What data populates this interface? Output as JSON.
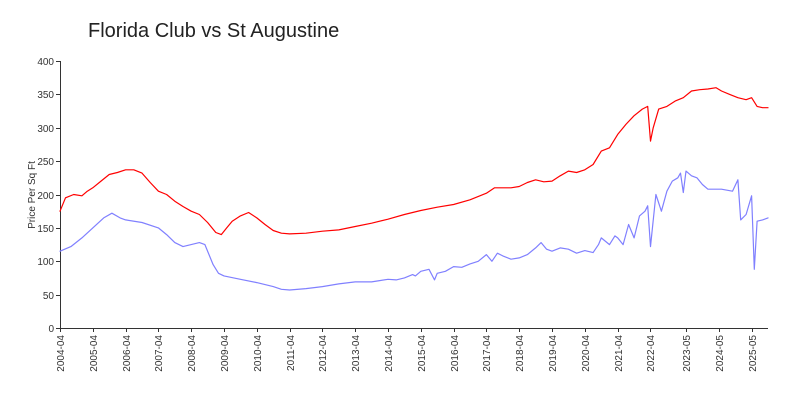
{
  "chart_data": {
    "type": "line",
    "title": "Florida Club vs St Augustine",
    "xlabel": "",
    "ylabel": "Price Per Sq Ft",
    "ylim": [
      0,
      400
    ],
    "xlim": [
      "2004-04",
      "2025-11"
    ],
    "grid": false,
    "yticks": [
      0,
      50,
      100,
      150,
      200,
      250,
      300,
      350,
      400
    ],
    "xticks": [
      "2004-04",
      "2005-04",
      "2006-04",
      "2007-04",
      "2008-04",
      "2009-04",
      "2010-04",
      "2011-04",
      "2012-04",
      "2013-04",
      "2014-04",
      "2015-04",
      "2016-04",
      "2017-04",
      "2018-04",
      "2019-04",
      "2020-04",
      "2021-04",
      "2022-04",
      "2023-05",
      "2024-05",
      "2025-05"
    ],
    "colors": {
      "red": "#ff0000",
      "blue": "#8080ff"
    },
    "series": [
      {
        "color": "#ff0000",
        "points": [
          [
            "2004-04",
            175
          ],
          [
            "2004-06",
            195
          ],
          [
            "2004-09",
            200
          ],
          [
            "2004-12",
            198
          ],
          [
            "2005-02",
            205
          ],
          [
            "2005-04",
            210
          ],
          [
            "2005-07",
            220
          ],
          [
            "2005-10",
            230
          ],
          [
            "2006-01",
            233
          ],
          [
            "2006-04",
            237
          ],
          [
            "2006-07",
            237
          ],
          [
            "2006-10",
            232
          ],
          [
            "2007-01",
            218
          ],
          [
            "2007-04",
            205
          ],
          [
            "2007-07",
            200
          ],
          [
            "2007-10",
            190
          ],
          [
            "2008-01",
            182
          ],
          [
            "2008-04",
            175
          ],
          [
            "2008-07",
            170
          ],
          [
            "2008-10",
            158
          ],
          [
            "2009-01",
            143
          ],
          [
            "2009-03",
            140
          ],
          [
            "2009-05",
            150
          ],
          [
            "2009-07",
            160
          ],
          [
            "2009-10",
            168
          ],
          [
            "2010-01",
            173
          ],
          [
            "2010-04",
            165
          ],
          [
            "2010-07",
            155
          ],
          [
            "2010-10",
            146
          ],
          [
            "2011-01",
            142
          ],
          [
            "2011-04",
            141
          ],
          [
            "2011-10",
            142
          ],
          [
            "2012-04",
            145
          ],
          [
            "2012-10",
            147
          ],
          [
            "2013-04",
            152
          ],
          [
            "2013-10",
            157
          ],
          [
            "2014-04",
            163
          ],
          [
            "2014-10",
            170
          ],
          [
            "2015-04",
            176
          ],
          [
            "2015-10",
            181
          ],
          [
            "2016-04",
            185
          ],
          [
            "2016-10",
            192
          ],
          [
            "2017-04",
            202
          ],
          [
            "2017-07",
            210
          ],
          [
            "2017-10",
            210
          ],
          [
            "2018-01",
            210
          ],
          [
            "2018-04",
            212
          ],
          [
            "2018-07",
            218
          ],
          [
            "2018-10",
            222
          ],
          [
            "2019-01",
            219
          ],
          [
            "2019-04",
            220
          ],
          [
            "2019-07",
            228
          ],
          [
            "2019-10",
            235
          ],
          [
            "2020-01",
            233
          ],
          [
            "2020-04",
            237
          ],
          [
            "2020-07",
            245
          ],
          [
            "2020-10",
            265
          ],
          [
            "2021-01",
            270
          ],
          [
            "2021-04",
            290
          ],
          [
            "2021-07",
            305
          ],
          [
            "2021-10",
            318
          ],
          [
            "2022-01",
            328
          ],
          [
            "2022-03",
            332
          ],
          [
            "2022-04",
            280
          ],
          [
            "2022-05",
            300
          ],
          [
            "2022-07",
            328
          ],
          [
            "2022-10",
            332
          ],
          [
            "2023-01",
            340
          ],
          [
            "2023-04",
            345
          ],
          [
            "2023-07",
            355
          ],
          [
            "2023-10",
            357
          ],
          [
            "2024-01",
            358
          ],
          [
            "2024-04",
            360
          ],
          [
            "2024-06",
            355
          ],
          [
            "2024-09",
            350
          ],
          [
            "2024-12",
            345
          ],
          [
            "2025-03",
            342
          ],
          [
            "2025-05",
            345
          ],
          [
            "2025-07",
            332
          ],
          [
            "2025-09",
            330
          ],
          [
            "2025-11",
            330
          ]
        ]
      },
      {
        "color": "#8080ff",
        "points": [
          [
            "2004-04",
            115
          ],
          [
            "2004-08",
            122
          ],
          [
            "2004-12",
            135
          ],
          [
            "2005-04",
            150
          ],
          [
            "2005-08",
            165
          ],
          [
            "2005-11",
            172
          ],
          [
            "2006-02",
            165
          ],
          [
            "2006-04",
            162
          ],
          [
            "2006-10",
            158
          ],
          [
            "2007-04",
            150
          ],
          [
            "2007-07",
            140
          ],
          [
            "2007-10",
            128
          ],
          [
            "2008-01",
            122
          ],
          [
            "2008-04",
            125
          ],
          [
            "2008-07",
            128
          ],
          [
            "2008-09",
            125
          ],
          [
            "2008-12",
            95
          ],
          [
            "2009-02",
            82
          ],
          [
            "2009-04",
            78
          ],
          [
            "2009-10",
            73
          ],
          [
            "2010-04",
            68
          ],
          [
            "2010-10",
            62
          ],
          [
            "2011-01",
            58
          ],
          [
            "2011-04",
            57
          ],
          [
            "2011-10",
            59
          ],
          [
            "2012-04",
            62
          ],
          [
            "2012-10",
            66
          ],
          [
            "2013-04",
            69
          ],
          [
            "2013-10",
            69
          ],
          [
            "2014-04",
            73
          ],
          [
            "2014-07",
            72
          ],
          [
            "2014-10",
            75
          ],
          [
            "2015-01",
            80
          ],
          [
            "2015-02",
            78
          ],
          [
            "2015-04",
            85
          ],
          [
            "2015-07",
            88
          ],
          [
            "2015-09",
            72
          ],
          [
            "2015-10",
            82
          ],
          [
            "2016-01",
            85
          ],
          [
            "2016-04",
            92
          ],
          [
            "2016-07",
            91
          ],
          [
            "2016-10",
            96
          ],
          [
            "2017-01",
            100
          ],
          [
            "2017-04",
            110
          ],
          [
            "2017-06",
            100
          ],
          [
            "2017-08",
            112
          ],
          [
            "2017-10",
            108
          ],
          [
            "2018-01",
            103
          ],
          [
            "2018-04",
            105
          ],
          [
            "2018-07",
            110
          ],
          [
            "2018-10",
            120
          ],
          [
            "2018-12",
            128
          ],
          [
            "2019-02",
            118
          ],
          [
            "2019-04",
            115
          ],
          [
            "2019-07",
            120
          ],
          [
            "2019-10",
            118
          ],
          [
            "2020-01",
            112
          ],
          [
            "2020-04",
            116
          ],
          [
            "2020-07",
            113
          ],
          [
            "2020-09",
            125
          ],
          [
            "2020-10",
            135
          ],
          [
            "2021-01",
            125
          ],
          [
            "2021-03",
            138
          ],
          [
            "2021-04",
            135
          ],
          [
            "2021-06",
            125
          ],
          [
            "2021-08",
            155
          ],
          [
            "2021-10",
            135
          ],
          [
            "2021-12",
            168
          ],
          [
            "2022-02",
            175
          ],
          [
            "2022-03",
            183
          ],
          [
            "2022-04",
            122
          ],
          [
            "2022-06",
            200
          ],
          [
            "2022-08",
            175
          ],
          [
            "2022-10",
            205
          ],
          [
            "2022-12",
            220
          ],
          [
            "2023-02",
            225
          ],
          [
            "2023-03",
            232
          ],
          [
            "2023-04",
            203
          ],
          [
            "2023-05",
            235
          ],
          [
            "2023-07",
            228
          ],
          [
            "2023-09",
            225
          ],
          [
            "2023-11",
            215
          ],
          [
            "2024-01",
            208
          ],
          [
            "2024-06",
            208
          ],
          [
            "2024-10",
            205
          ],
          [
            "2024-12",
            222
          ],
          [
            "2025-01",
            162
          ],
          [
            "2025-03",
            170
          ],
          [
            "2025-05",
            198
          ],
          [
            "2025-06",
            88
          ],
          [
            "2025-07",
            160
          ],
          [
            "2025-09",
            162
          ],
          [
            "2025-11",
            165
          ]
        ]
      }
    ]
  }
}
